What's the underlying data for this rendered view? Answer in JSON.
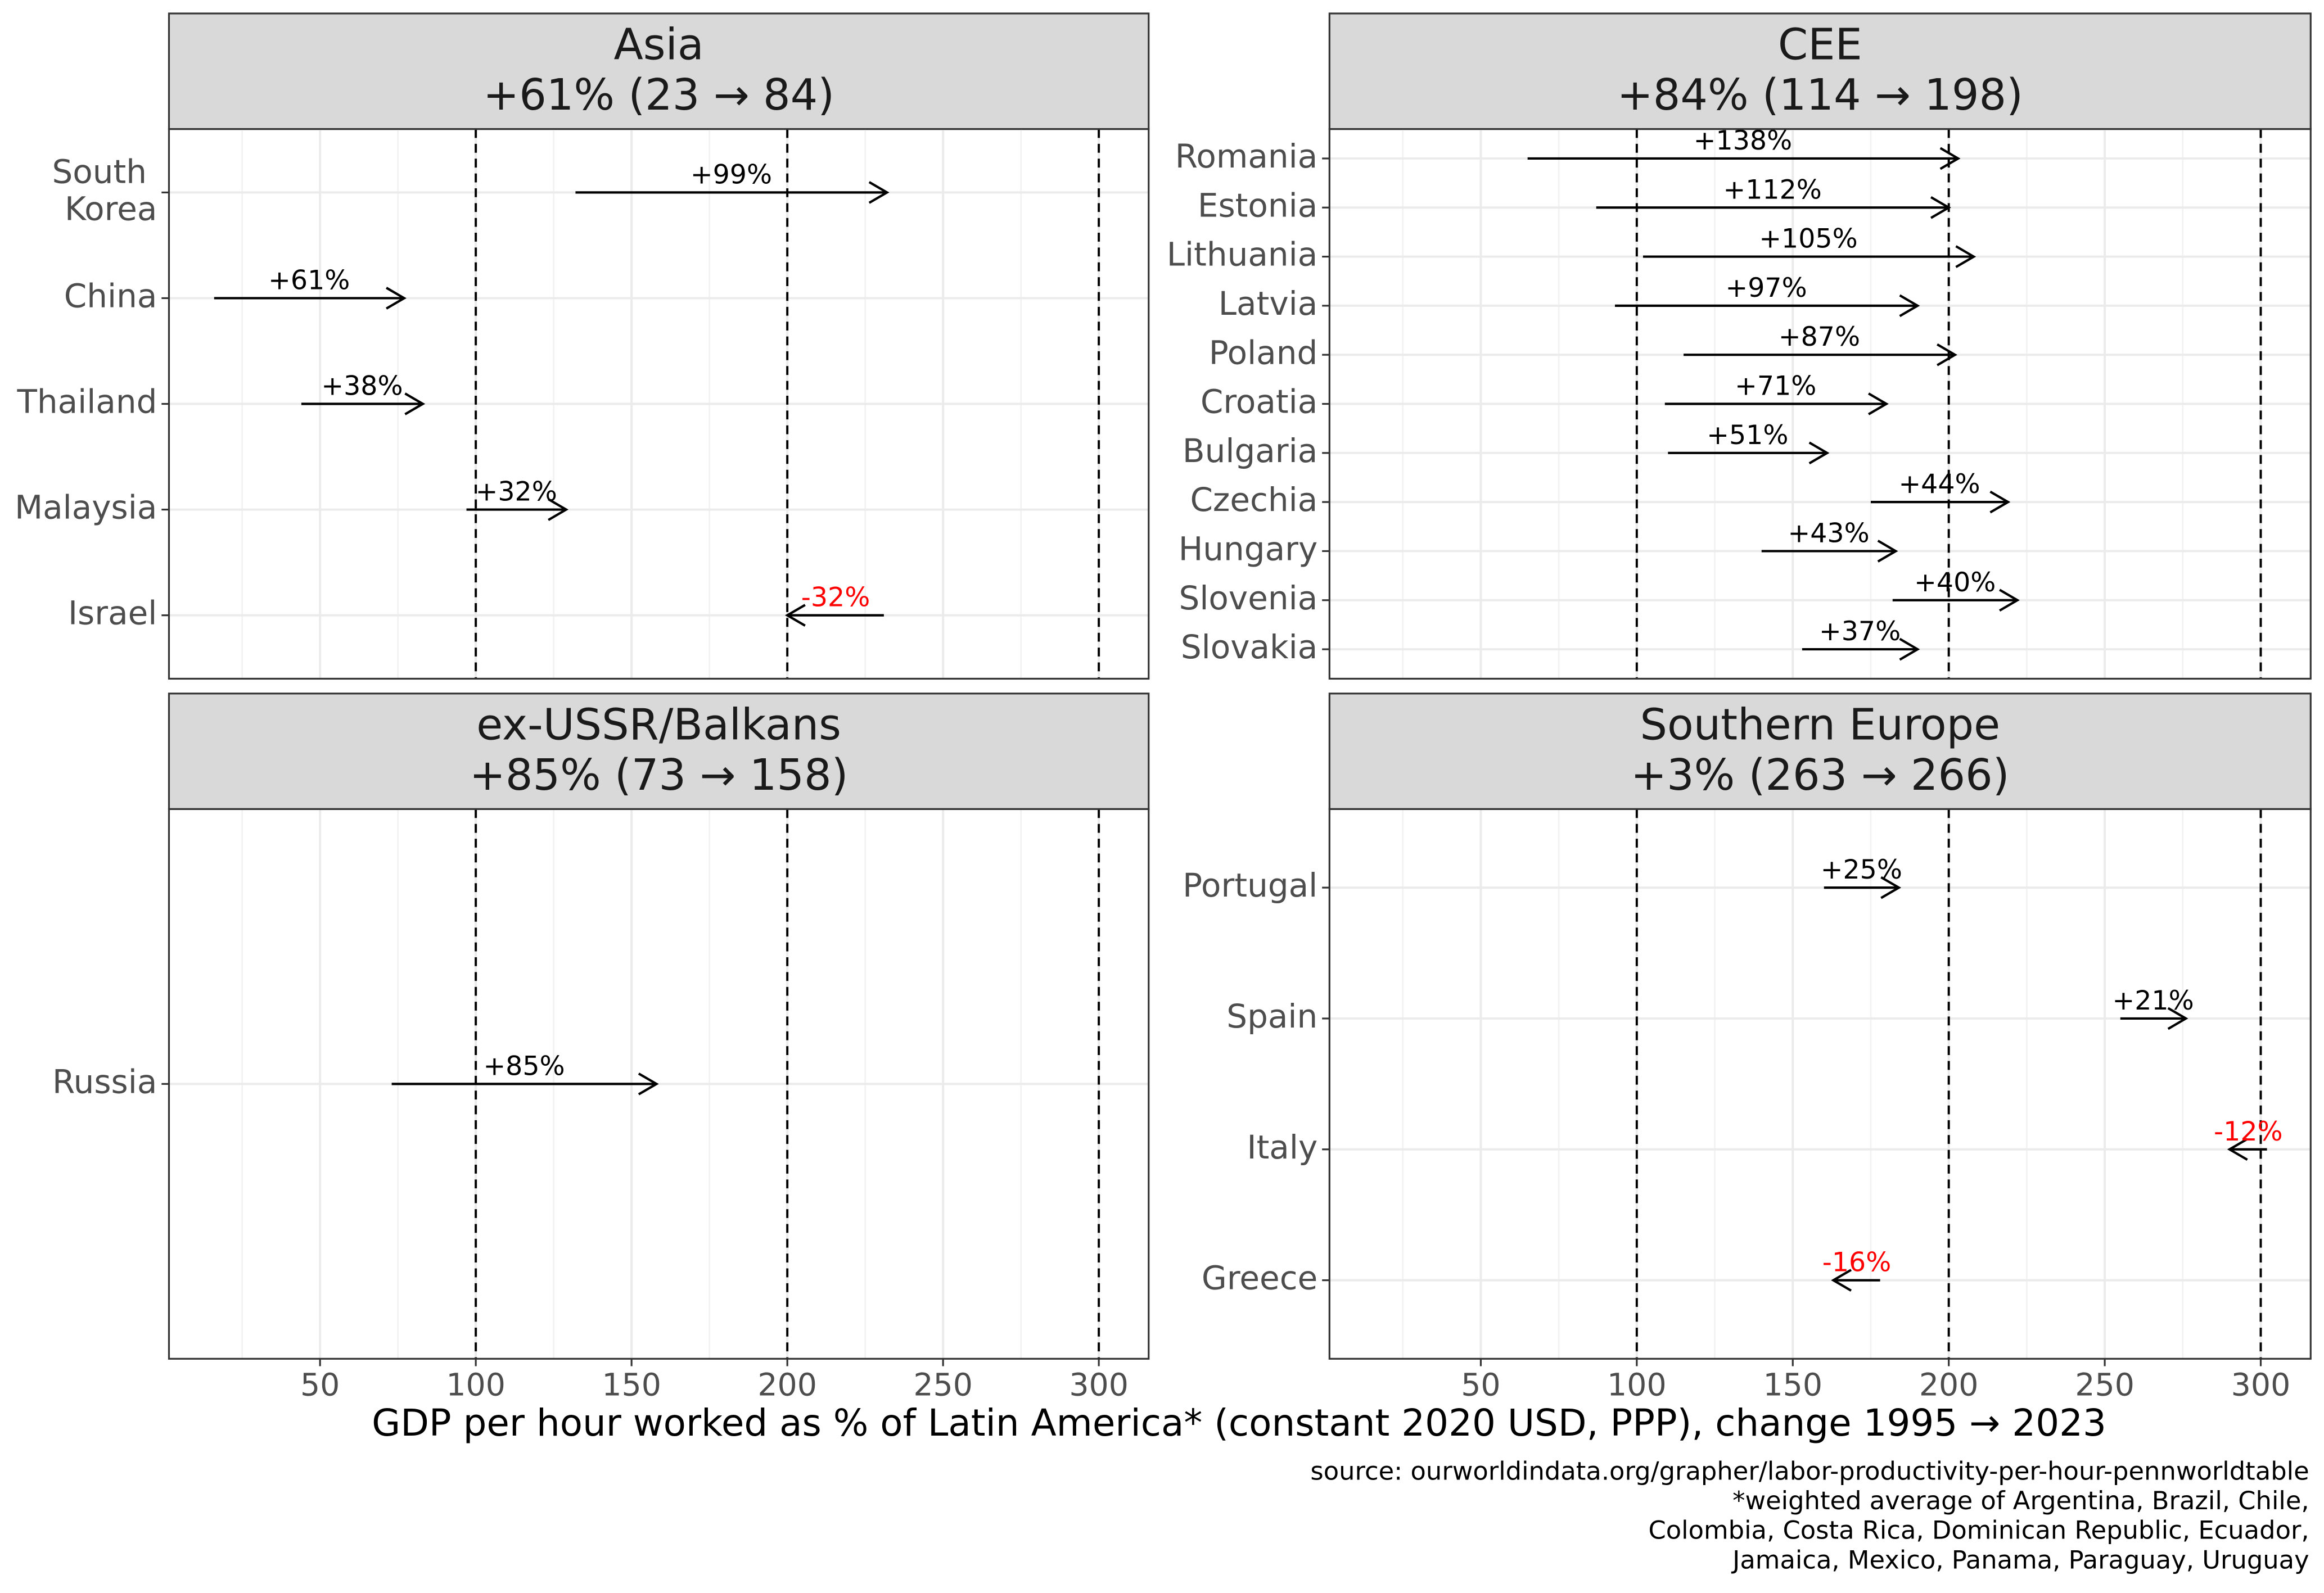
{
  "chart_data": [
    {
      "type": "arrow",
      "title": "Asia",
      "subtitle": "+61% (23 → 84)",
      "categories": [
        "South Korea",
        "China",
        "Thailand",
        "Malaysia",
        "Israel"
      ],
      "starts": [
        132,
        16,
        44,
        97,
        231
      ],
      "ends": [
        232,
        77,
        83,
        129,
        200
      ],
      "values": [
        99,
        61,
        38,
        32,
        -32
      ],
      "value_labels": [
        "+99%",
        "+61%",
        "+38%",
        "+32%",
        "-32%"
      ],
      "xlim": [
        1.5,
        316
      ],
      "xticks": [
        50,
        100,
        150,
        200,
        250,
        300
      ],
      "vlines": [
        100,
        200,
        300
      ],
      "color": "#000000",
      "negative_color": "#ff0000",
      "grid": true
    },
    {
      "type": "arrow",
      "title": "CEE",
      "subtitle": "+84% (114 → 198)",
      "categories": [
        "Romania",
        "Estonia",
        "Lithuania",
        "Latvia",
        "Poland",
        "Croatia",
        "Bulgaria",
        "Czechia",
        "Hungary",
        "Slovenia",
        "Slovakia"
      ],
      "starts": [
        65,
        87,
        102,
        93,
        115,
        109,
        110,
        175,
        140,
        182,
        153
      ],
      "ends": [
        203,
        200,
        208,
        190,
        202,
        180,
        161,
        219,
        183,
        222,
        190
      ],
      "values": [
        138,
        112,
        105,
        97,
        87,
        71,
        51,
        44,
        43,
        40,
        37
      ],
      "value_labels": [
        "+138%",
        "+112%",
        "+105%",
        "+97%",
        "+87%",
        "+71%",
        "+51%",
        "+44%",
        "+43%",
        "+40%",
        "+37%"
      ],
      "xlim": [
        1.5,
        316
      ],
      "xticks": [
        50,
        100,
        150,
        200,
        250,
        300
      ],
      "vlines": [
        100,
        200,
        300
      ],
      "color": "#000000",
      "negative_color": "#ff0000",
      "grid": true
    },
    {
      "type": "arrow",
      "title": "ex-USSR/Balkans",
      "subtitle": "+85% (73 → 158)",
      "categories": [
        "Russia"
      ],
      "starts": [
        73
      ],
      "ends": [
        158
      ],
      "values": [
        85
      ],
      "value_labels": [
        "+85%"
      ],
      "xlim": [
        1.5,
        316
      ],
      "xticks": [
        50,
        100,
        150,
        200,
        250,
        300
      ],
      "vlines": [
        100,
        200,
        300
      ],
      "color": "#000000",
      "negative_color": "#ff0000",
      "grid": true
    },
    {
      "type": "arrow",
      "title": "Southern Europe",
      "subtitle": "+3% (263 → 266)",
      "categories": [
        "Portugal",
        "Spain",
        "Italy",
        "Greece"
      ],
      "starts": [
        160,
        255,
        302,
        178
      ],
      "ends": [
        184,
        276,
        290,
        163
      ],
      "values": [
        25,
        21,
        -12,
        -16
      ],
      "value_labels": [
        "+25%",
        "+21%",
        "-12%",
        "-16%"
      ],
      "xlim": [
        1.5,
        316
      ],
      "xticks": [
        50,
        100,
        150,
        200,
        250,
        300
      ],
      "vlines": [
        100,
        200,
        300
      ],
      "color": "#000000",
      "negative_color": "#ff0000",
      "grid": true
    }
  ],
  "figure": {
    "xlabel": "GDP per hour worked as % of Latin America* (constant 2020 USD, PPP), change 1995 → 2023",
    "notes": [
      "source: ourworldindata.org/grapher/labor-productivity-per-hour-pennworldtable",
      "*weighted average of Argentina, Brazil, Chile,",
      "Colombia, Costa Rica, Dominican Republic, Ecuador,",
      "Jamaica, Mexico, Panama, Paraguay, Uruguay"
    ]
  }
}
